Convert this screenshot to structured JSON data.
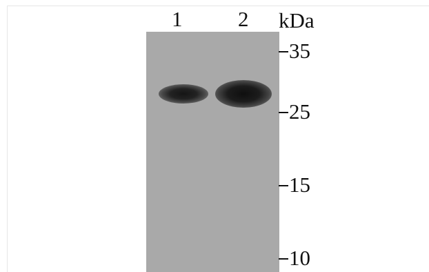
{
  "blot": {
    "lanes": [
      "1",
      "2"
    ],
    "unit": "kDa",
    "markers": [
      "35",
      "25",
      "15",
      "10"
    ],
    "membrane_color": "#a9a9a9",
    "band_color": "#1a1a1a"
  }
}
